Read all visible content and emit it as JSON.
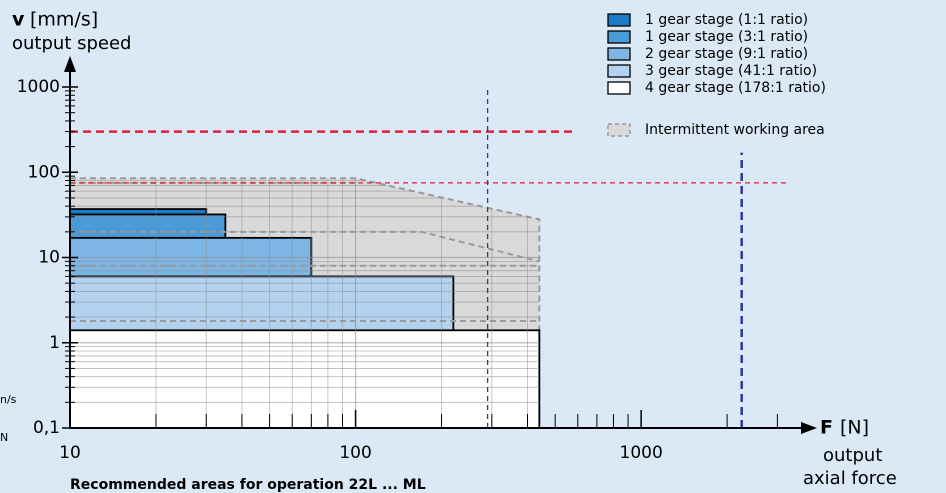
{
  "chart_data": {
    "type": "area-map",
    "log_x": true,
    "log_y": true,
    "y_label_symbol": "v",
    "y_label_unit": "[mm/s]",
    "y_label": "output speed",
    "x_label_symbol": "F",
    "x_label_unit": "[N]",
    "x_label": [
      "output",
      "axial force"
    ],
    "caption": "Recommended areas for operation 22L ... ML",
    "side_notes": [
      "n/s",
      "N"
    ],
    "xlim": [
      10,
      3600
    ],
    "ylim": [
      0.1,
      1000
    ],
    "xticks": [
      10,
      100,
      1000
    ],
    "yticks": [
      {
        "value": 0.1,
        "label": "0,1"
      },
      1,
      10,
      100,
      1000
    ],
    "x_minor_ticks": [
      20,
      30,
      40,
      50,
      60,
      70,
      80,
      90,
      200,
      300,
      400,
      500,
      600,
      700,
      800,
      900,
      2000,
      3000
    ],
    "y_minor_ticks": [
      0.2,
      0.3,
      0.4,
      0.5,
      0.6,
      0.7,
      0.8,
      0.9,
      2,
      3,
      4,
      5,
      6,
      7,
      8,
      9,
      20,
      30,
      40,
      50,
      60,
      70,
      80,
      90,
      200,
      300,
      400,
      500,
      600,
      700,
      800,
      900
    ],
    "series": [
      {
        "name": "1 gear stage (1:1 ratio)",
        "color": "#1a7dc6",
        "max_force": 30,
        "max_speed": 37
      },
      {
        "name": "1 gear stage (3:1 ratio)",
        "color": "#4b9ad8",
        "max_force": 35,
        "max_speed": 32
      },
      {
        "name": "2 gear stage (9:1 ratio)",
        "color": "#7db5e4",
        "max_force": 70,
        "max_speed": 17
      },
      {
        "name": "3 gear stage (41:1 ratio)",
        "color": "#b2d2f0",
        "max_force": 220,
        "max_speed": 6
      },
      {
        "name": "4 gear stage (178:1 ratio)",
        "color": "#ffffff",
        "max_force": 440,
        "max_speed": 1.4
      }
    ],
    "intermittent": {
      "name": "Intermittent working area",
      "color": "#d9d9d9",
      "line_color": "#9a9a9a",
      "x": [
        10,
        100,
        440,
        440,
        10
      ],
      "y": [
        85,
        85,
        28,
        0.1,
        0.1
      ],
      "lines": [
        {
          "x": [
            10,
            100
          ],
          "y": [
            75,
            75
          ]
        },
        {
          "x": [
            10,
            170,
            440
          ],
          "y": [
            20,
            20,
            9
          ]
        },
        {
          "x": [
            10,
            440
          ],
          "y": [
            8,
            8
          ]
        },
        {
          "x": [
            10,
            440
          ],
          "y": [
            1.8,
            1.8
          ]
        }
      ]
    },
    "reference_lines": [
      {
        "orientation": "h",
        "value": 300,
        "extent": [
          10,
          580
        ],
        "color": "#e0203a",
        "width": 2.5
      },
      {
        "orientation": "h",
        "value": 75,
        "extent": [
          10,
          3300
        ],
        "color": "#e0203a",
        "width": 1.3
      },
      {
        "orientation": "v",
        "value": 290,
        "extent": [
          0.1,
          1000
        ],
        "color": "#2a3a9a",
        "width": 1.3
      },
      {
        "orientation": "v",
        "value": 2250,
        "extent": [
          0.1,
          170
        ],
        "color": "#2a3a9a",
        "width": 2.5
      }
    ]
  }
}
